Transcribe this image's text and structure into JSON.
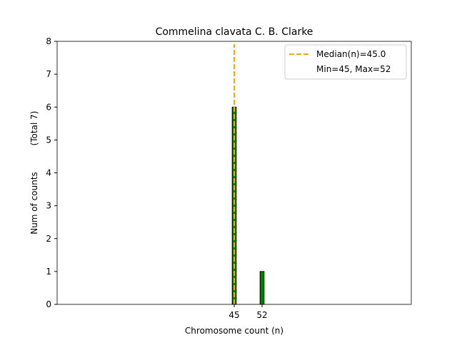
{
  "chart_data": {
    "type": "bar",
    "title": "Commelina clavata C. B. Clarke",
    "xlabel": "Chromosome count (n)",
    "ylabel": "Num of counts",
    "ylabel_secondary": "(Total 7)",
    "xlim": [
      0.5,
      89.5
    ],
    "ylim": [
      0,
      8
    ],
    "x_ticks": [
      45,
      52
    ],
    "y_ticks": [
      0,
      1,
      2,
      3,
      4,
      5,
      6,
      7,
      8
    ],
    "bars": [
      {
        "x": 45,
        "value": 6
      },
      {
        "x": 52,
        "value": 1
      }
    ],
    "empty_bins": [
      46,
      47,
      48,
      49,
      50,
      51,
      53,
      54
    ],
    "bar_color": "#008000",
    "median": 45.0,
    "median_color": "#FFA500",
    "legend": {
      "placement": "top-right",
      "entries": [
        "Median(n)=45.0",
        "Min=45, Max=52"
      ]
    }
  }
}
